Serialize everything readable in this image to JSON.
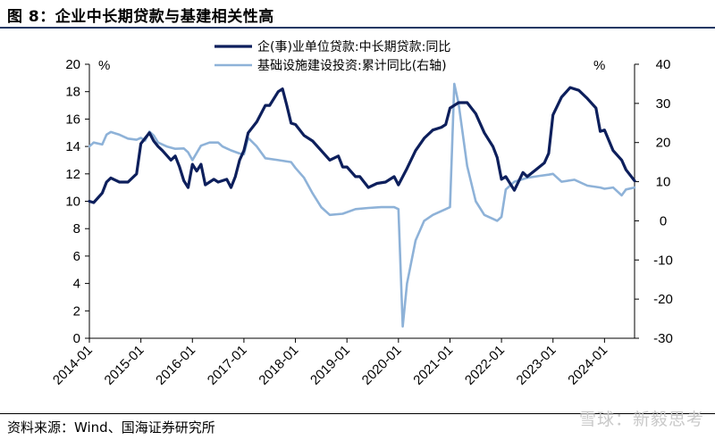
{
  "figure": {
    "title": "图 8：企业中长期贷款与基建相关性高",
    "source": "资料来源：Wind、国海证券研究所",
    "watermark": "雪球：新毅思考"
  },
  "chart_data": {
    "type": "line",
    "legend_position": "top",
    "grid": false,
    "x_range": [
      "2014-01",
      "2024-08"
    ],
    "x_tick_labels": [
      "2014-01",
      "2015-01",
      "2016-01",
      "2017-01",
      "2018-01",
      "2019-01",
      "2020-01",
      "2021-01",
      "2022-01",
      "2023-01",
      "2024-01"
    ],
    "y_left": {
      "unit": "%",
      "range": [
        0,
        20
      ],
      "ticks": [
        "0",
        "2",
        "4",
        "6",
        "8",
        "10",
        "12",
        "14",
        "16",
        "18",
        "20"
      ]
    },
    "y_right": {
      "unit": "%",
      "range": [
        -30,
        40
      ],
      "ticks": [
        "-30",
        "-20",
        "-10",
        "0",
        "10",
        "20",
        "30",
        "40"
      ]
    },
    "series": [
      {
        "name": "企(事)业单位贷款:中长期贷款:同比",
        "axis": "left",
        "color": "#0d1f5c",
        "points": [
          [
            "2014-01",
            10.0
          ],
          [
            "2014-02",
            9.9
          ],
          [
            "2014-04",
            10.6
          ],
          [
            "2014-05",
            11.4
          ],
          [
            "2014-06",
            11.7
          ],
          [
            "2014-08",
            11.4
          ],
          [
            "2014-10",
            11.4
          ],
          [
            "2014-12",
            12.0
          ],
          [
            "2015-01",
            14.2
          ],
          [
            "2015-02",
            14.6
          ],
          [
            "2015-03",
            15.0
          ],
          [
            "2015-04",
            14.4
          ],
          [
            "2015-05",
            14.0
          ],
          [
            "2015-06",
            13.7
          ],
          [
            "2015-08",
            13.0
          ],
          [
            "2015-09",
            13.3
          ],
          [
            "2015-10",
            12.5
          ],
          [
            "2015-11",
            11.5
          ],
          [
            "2015-12",
            11.0
          ],
          [
            "2016-01",
            12.7
          ],
          [
            "2016-02",
            12.2
          ],
          [
            "2016-03",
            12.7
          ],
          [
            "2016-04",
            11.2
          ],
          [
            "2016-06",
            11.6
          ],
          [
            "2016-07",
            11.4
          ],
          [
            "2016-09",
            11.6
          ],
          [
            "2016-10",
            11.0
          ],
          [
            "2016-11",
            11.8
          ],
          [
            "2016-12",
            13.0
          ],
          [
            "2017-01",
            13.7
          ],
          [
            "2017-02",
            15.0
          ],
          [
            "2017-04",
            15.8
          ],
          [
            "2017-06",
            17.0
          ],
          [
            "2017-07",
            17.0
          ],
          [
            "2017-09",
            18.0
          ],
          [
            "2017-10",
            18.2
          ],
          [
            "2017-11",
            17.0
          ],
          [
            "2017-12",
            15.7
          ],
          [
            "2018-01",
            15.6
          ],
          [
            "2018-03",
            14.8
          ],
          [
            "2018-05",
            14.4
          ],
          [
            "2018-07",
            13.7
          ],
          [
            "2018-09",
            13.0
          ],
          [
            "2018-11",
            13.3
          ],
          [
            "2018-12",
            12.5
          ],
          [
            "2019-01",
            12.5
          ],
          [
            "2019-03",
            11.8
          ],
          [
            "2019-04",
            11.8
          ],
          [
            "2019-06",
            11.0
          ],
          [
            "2019-08",
            11.3
          ],
          [
            "2019-10",
            11.4
          ],
          [
            "2019-12",
            11.8
          ],
          [
            "2020-01",
            11.2
          ],
          [
            "2020-03",
            12.4
          ],
          [
            "2020-05",
            13.7
          ],
          [
            "2020-07",
            14.6
          ],
          [
            "2020-09",
            15.2
          ],
          [
            "2020-11",
            15.4
          ],
          [
            "2020-12",
            15.6
          ],
          [
            "2021-01",
            16.8
          ],
          [
            "2021-03",
            17.2
          ],
          [
            "2021-05",
            17.2
          ],
          [
            "2021-07",
            16.4
          ],
          [
            "2021-09",
            15.0
          ],
          [
            "2021-11",
            14.0
          ],
          [
            "2021-12",
            13.2
          ],
          [
            "2022-01",
            11.6
          ],
          [
            "2022-02",
            11.8
          ],
          [
            "2022-04",
            10.8
          ],
          [
            "2022-06",
            12.1
          ],
          [
            "2022-07",
            11.8
          ],
          [
            "2022-09",
            12.3
          ],
          [
            "2022-11",
            12.8
          ],
          [
            "2022-12",
            13.5
          ],
          [
            "2023-01",
            16.3
          ],
          [
            "2023-03",
            17.6
          ],
          [
            "2023-05",
            18.3
          ],
          [
            "2023-07",
            18.1
          ],
          [
            "2023-09",
            17.5
          ],
          [
            "2023-11",
            16.8
          ],
          [
            "2023-12",
            15.1
          ],
          [
            "2024-01",
            15.2
          ],
          [
            "2024-03",
            13.7
          ],
          [
            "2024-05",
            13.0
          ],
          [
            "2024-06",
            12.3
          ],
          [
            "2024-08",
            11.5
          ]
        ]
      },
      {
        "name": "基础设施建设投资:累计同比(右轴)",
        "axis": "right",
        "color": "#8eb2d8",
        "points": [
          [
            "2014-01",
            19.0
          ],
          [
            "2014-02",
            20.0
          ],
          [
            "2014-04",
            19.5
          ],
          [
            "2014-05",
            22.0
          ],
          [
            "2014-06",
            22.7
          ],
          [
            "2014-08",
            22.0
          ],
          [
            "2014-10",
            21.0
          ],
          [
            "2014-12",
            20.7
          ],
          [
            "2015-01",
            21.2
          ],
          [
            "2015-02",
            20.5
          ],
          [
            "2015-03",
            22.8
          ],
          [
            "2015-04",
            21.8
          ],
          [
            "2015-05",
            20.0
          ],
          [
            "2015-07",
            19.0
          ],
          [
            "2015-09",
            18.4
          ],
          [
            "2015-11",
            18.5
          ],
          [
            "2015-12",
            17.5
          ],
          [
            "2016-01",
            15.5
          ],
          [
            "2016-03",
            19.2
          ],
          [
            "2016-05",
            20.0
          ],
          [
            "2016-07",
            20.0
          ],
          [
            "2016-08",
            19.0
          ],
          [
            "2016-10",
            18.0
          ],
          [
            "2016-12",
            17.2
          ],
          [
            "2017-01",
            17.0
          ],
          [
            "2017-02",
            21.2
          ],
          [
            "2017-04",
            19.0
          ],
          [
            "2017-06",
            16.0
          ],
          [
            "2017-09",
            15.5
          ],
          [
            "2017-12",
            15.0
          ],
          [
            "2018-01",
            13.5
          ],
          [
            "2018-03",
            11.0
          ],
          [
            "2018-05",
            7.0
          ],
          [
            "2018-07",
            3.5
          ],
          [
            "2018-09",
            1.5
          ],
          [
            "2018-12",
            1.8
          ],
          [
            "2019-03",
            3.0
          ],
          [
            "2019-06",
            3.3
          ],
          [
            "2019-09",
            3.5
          ],
          [
            "2019-12",
            3.5
          ],
          [
            "2020-01",
            3.0
          ],
          [
            "2020-02",
            -27.0
          ],
          [
            "2020-03",
            -16.0
          ],
          [
            "2020-05",
            -5.0
          ],
          [
            "2020-07",
            0.0
          ],
          [
            "2020-09",
            1.5
          ],
          [
            "2020-12",
            3.0
          ],
          [
            "2021-01",
            3.5
          ],
          [
            "2021-02",
            35.0
          ],
          [
            "2021-03",
            30.0
          ],
          [
            "2021-05",
            14.0
          ],
          [
            "2021-07",
            5.0
          ],
          [
            "2021-09",
            1.5
          ],
          [
            "2021-11",
            0.5
          ],
          [
            "2021-12",
            0.0
          ],
          [
            "2022-01",
            1.0
          ],
          [
            "2022-02",
            8.0
          ],
          [
            "2022-04",
            10.0
          ],
          [
            "2022-07",
            11.0
          ],
          [
            "2022-10",
            11.5
          ],
          [
            "2022-12",
            11.8
          ],
          [
            "2023-01",
            12.0
          ],
          [
            "2023-03",
            10.0
          ],
          [
            "2023-06",
            10.5
          ],
          [
            "2023-09",
            9.0
          ],
          [
            "2023-12",
            8.5
          ],
          [
            "2024-01",
            8.2
          ],
          [
            "2024-03",
            8.5
          ],
          [
            "2024-05",
            6.5
          ],
          [
            "2024-06",
            8.0
          ],
          [
            "2024-08",
            8.5
          ]
        ]
      }
    ]
  }
}
